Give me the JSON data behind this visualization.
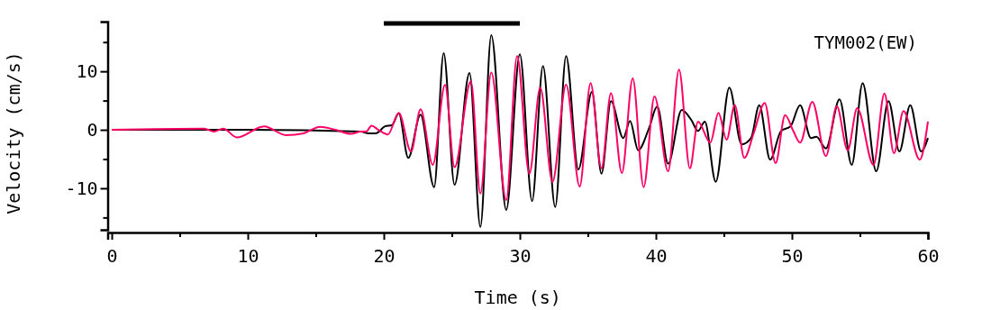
{
  "chart_data": {
    "type": "line",
    "xlabel": "Time (s)",
    "ylabel": "Velocity (cm/s)",
    "annotations": [
      "TYM002(EW)"
    ],
    "xlim": [
      -0.3,
      60
    ],
    "xticks": [
      0,
      {
        "value": 5,
        "label": null
      },
      10,
      {
        "value": 15,
        "label": null
      },
      20,
      {
        "value": 25,
        "label": null
      },
      30,
      {
        "value": 35,
        "label": null
      },
      40,
      {
        "value": 45,
        "label": null
      },
      50,
      {
        "value": 55,
        "label": null
      },
      60
    ],
    "ylim": [
      -17.1,
      18.5
    ],
    "yticks": [
      {
        "value": -15,
        "label": null
      },
      -10,
      {
        "value": -5,
        "label": null
      },
      0,
      {
        "value": 5,
        "label": null
      },
      10,
      {
        "value": 15,
        "label": null
      }
    ],
    "grid": false,
    "line_style": "solid",
    "marker": "none",
    "series": [
      {
        "color": "#000000",
        "x": [
          20,
          30
        ],
        "values": [
          18.2,
          18.2
        ]
      },
      {
        "color": "#000000",
        "x": [
          0,
          10,
          18.3,
          18.9,
          19.4,
          20.1,
          20.6,
          21.1,
          21.8,
          22.7,
          23.7,
          24.4,
          25.2,
          26.3,
          27.1,
          27.9,
          29.0,
          30.0,
          30.9,
          31.7,
          32.6,
          33.4,
          34.3,
          35.3,
          36.0,
          36.7,
          37.6,
          38.1,
          38.7,
          39.5,
          40.1,
          40.9,
          41.9,
          42.6,
          43.1,
          43.6,
          44.4,
          45.4,
          46.3,
          47.0,
          47.6,
          48.4,
          49.2,
          49.9,
          50.6,
          51.4,
          51.8,
          52.5,
          53.5,
          54.4,
          55.2,
          56.2,
          57.1,
          57.9,
          58.7,
          59.5,
          60
        ],
        "values": [
          0,
          0,
          -0.3,
          -0.6,
          -0.6,
          0.6,
          0.8,
          2.8,
          -4.8,
          2.6,
          -9.8,
          13.1,
          -9.4,
          9.7,
          -16.6,
          16.2,
          -13.7,
          12.9,
          -12.2,
          10.9,
          -13.2,
          12.6,
          -6.8,
          6.5,
          -7.5,
          4.9,
          -1.4,
          1.5,
          -3.5,
          0.3,
          4.0,
          -5.8,
          3.4,
          1.7,
          -0.2,
          1.4,
          -8.9,
          7.2,
          -2.5,
          -1.4,
          4.2,
          -5.1,
          -0.2,
          0.6,
          4.2,
          -1.4,
          -1.2,
          -3.2,
          5.2,
          -6.0,
          8.0,
          -7.1,
          4.9,
          -3.7,
          4.2,
          -3.7,
          -1.4
        ]
      },
      {
        "color": "#ff0066",
        "x": [
          0,
          6.8,
          7.5,
          8.2,
          9.2,
          11.2,
          12.8,
          14.1,
          15.3,
          16.3,
          17.6,
          18.3,
          18.7,
          19.1,
          19.6,
          20.3,
          21.1,
          22.0,
          22.7,
          23.6,
          24.5,
          25.2,
          26.4,
          27.1,
          27.9,
          29.0,
          29.8,
          30.7,
          31.5,
          32.4,
          33.4,
          34.4,
          35.2,
          36.0,
          36.7,
          37.5,
          38.3,
          39.1,
          39.9,
          40.9,
          41.7,
          42.5,
          43.1,
          44.0,
          44.6,
          45.2,
          45.8,
          46.5,
          47.2,
          48.0,
          48.8,
          49.5,
          50.1,
          50.6,
          51.5,
          52.5,
          53.3,
          54.1,
          54.8,
          56.0,
          56.8,
          57.5,
          58.2,
          59.4,
          60
        ],
        "values": [
          0,
          0.2,
          -0.3,
          0.2,
          -1.3,
          0.6,
          -0.9,
          -0.6,
          0.5,
          0.1,
          -0.7,
          -0.3,
          -0.3,
          0.7,
          0.0,
          -0.8,
          2.9,
          -3.7,
          3.5,
          -6.0,
          7.7,
          -6.4,
          8.3,
          -10.9,
          9.8,
          -12.0,
          12.6,
          -7.5,
          7.2,
          -8.9,
          7.7,
          -9.7,
          8.0,
          -6.6,
          6.3,
          -7.4,
          8.8,
          -9.8,
          5.7,
          -7.1,
          10.3,
          -6.6,
          1.4,
          -2.2,
          2.9,
          -1.7,
          4.2,
          -4.8,
          -0.5,
          4.6,
          -5.7,
          2.5,
          -0.2,
          -2.2,
          4.8,
          -4.5,
          4.0,
          -3.5,
          3.7,
          -6.0,
          6.2,
          -4.0,
          3.2,
          -5.1,
          1.4
        ]
      }
    ]
  }
}
